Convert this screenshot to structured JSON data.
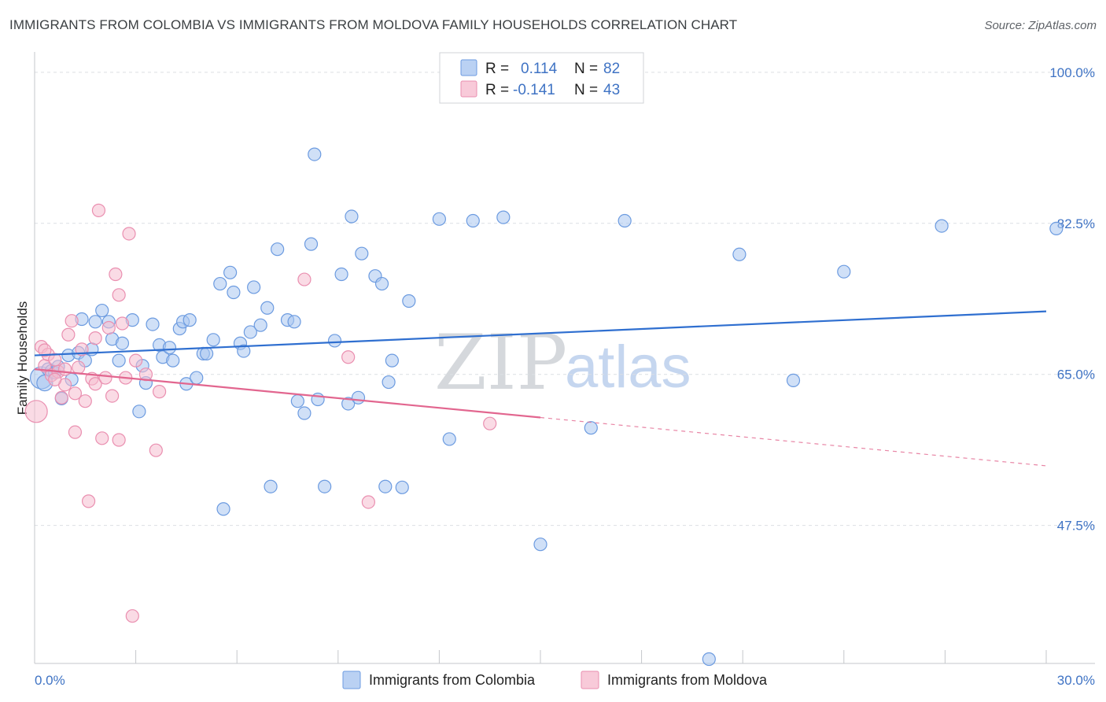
{
  "title": "IMMIGRANTS FROM COLOMBIA VS IMMIGRANTS FROM MOLDOVA FAMILY HOUSEHOLDS CORRELATION CHART",
  "source": "Source: ZipAtlas.com",
  "watermark": {
    "zip": "ZIP",
    "atlas": "atlas"
  },
  "colors": {
    "colombia_fill": "#a9c6f0",
    "colombia_stroke": "#6c9be0",
    "colombia_line": "#2f6fd0",
    "moldova_fill": "#f6bdd0",
    "moldova_stroke": "#ea8fb0",
    "moldova_line": "#e2668f",
    "grid": "#dcdfe3",
    "axis_text": "#3f73c4"
  },
  "legend": {
    "rows": [
      {
        "r_label": "R =",
        "r_value": "0.114",
        "n_label": "N =",
        "n_value": "82"
      },
      {
        "r_label": "R =",
        "r_value": "-0.141",
        "n_label": "N =",
        "n_value": "43"
      }
    ]
  },
  "chart_data": {
    "type": "scatter",
    "title": "IMMIGRANTS FROM COLOMBIA VS IMMIGRANTS FROM MOLDOVA FAMILY HOUSEHOLDS CORRELATION CHART",
    "xlabel": "",
    "ylabel": "Family Households",
    "xlim": [
      0,
      30
    ],
    "ylim": [
      31.5,
      102
    ],
    "x_tick_labels": [
      "0.0%",
      "30.0%"
    ],
    "y_ticks": [
      47.5,
      65.0,
      82.5,
      100.0
    ],
    "y_tick_labels": [
      "47.5%",
      "65.0%",
      "82.5%",
      "100.0%"
    ],
    "grid": true,
    "legend_position": "top-center",
    "series": [
      {
        "name": "Immigrants from Colombia",
        "trend": {
          "x": [
            0,
            30
          ],
          "y": [
            67.2,
            72.3
          ],
          "dashed_from": null
        },
        "points": [
          [
            0.2,
            64.6,
            14
          ],
          [
            0.4,
            65.6,
            8
          ],
          [
            0.5,
            65.4,
            8
          ],
          [
            0.6,
            65.2,
            8
          ],
          [
            0.7,
            65.9,
            8
          ],
          [
            0.8,
            62.2,
            8
          ],
          [
            1.0,
            67.2,
            8
          ],
          [
            1.1,
            64.4,
            8
          ],
          [
            1.3,
            67.5,
            8
          ],
          [
            1.5,
            66.6,
            8
          ],
          [
            1.7,
            67.9,
            8
          ],
          [
            1.4,
            71.4,
            8
          ],
          [
            1.8,
            71.1,
            8
          ],
          [
            2.0,
            72.4,
            8
          ],
          [
            2.2,
            71.1,
            8
          ],
          [
            2.3,
            69.1,
            8
          ],
          [
            2.5,
            66.6,
            8
          ],
          [
            2.6,
            68.6,
            8
          ],
          [
            2.9,
            71.3,
            8
          ],
          [
            3.1,
            60.7,
            8
          ],
          [
            3.2,
            66.0,
            8
          ],
          [
            3.3,
            64.0,
            8
          ],
          [
            3.5,
            70.8,
            8
          ],
          [
            3.7,
            68.4,
            8
          ],
          [
            3.8,
            67.0,
            8
          ],
          [
            4.0,
            68.1,
            8
          ],
          [
            4.1,
            66.6,
            8
          ],
          [
            4.3,
            70.3,
            8
          ],
          [
            4.4,
            71.1,
            8
          ],
          [
            4.6,
            71.3,
            8
          ],
          [
            4.5,
            63.9,
            8
          ],
          [
            4.8,
            64.6,
            8
          ],
          [
            5.0,
            67.4,
            8
          ],
          [
            5.1,
            67.4,
            8
          ],
          [
            5.3,
            69.0,
            8
          ],
          [
            5.5,
            75.5,
            8
          ],
          [
            5.8,
            76.8,
            8
          ],
          [
            5.6,
            49.4,
            8
          ],
          [
            5.9,
            74.5,
            8
          ],
          [
            6.1,
            68.6,
            8
          ],
          [
            6.2,
            67.7,
            8
          ],
          [
            6.4,
            69.9,
            8
          ],
          [
            6.5,
            75.1,
            8
          ],
          [
            6.7,
            70.7,
            8
          ],
          [
            6.9,
            72.7,
            8
          ],
          [
            7.2,
            79.5,
            8
          ],
          [
            7.0,
            52.0,
            8
          ],
          [
            7.5,
            71.3,
            8
          ],
          [
            7.7,
            71.1,
            8
          ],
          [
            7.8,
            61.9,
            8
          ],
          [
            8.0,
            60.5,
            8
          ],
          [
            8.2,
            80.1,
            8
          ],
          [
            8.3,
            90.5,
            8
          ],
          [
            8.4,
            62.1,
            8
          ],
          [
            8.6,
            52.0,
            8
          ],
          [
            8.9,
            68.9,
            8
          ],
          [
            9.1,
            76.6,
            8
          ],
          [
            9.3,
            61.6,
            8
          ],
          [
            9.4,
            83.3,
            8
          ],
          [
            9.6,
            62.3,
            8
          ],
          [
            9.7,
            79.0,
            8
          ],
          [
            10.1,
            76.4,
            8
          ],
          [
            10.3,
            75.5,
            8
          ],
          [
            10.4,
            52.0,
            8
          ],
          [
            10.6,
            66.6,
            8
          ],
          [
            10.5,
            64.1,
            8
          ],
          [
            10.9,
            51.9,
            8
          ],
          [
            11.1,
            73.5,
            8
          ],
          [
            12.0,
            83.0,
            8
          ],
          [
            12.3,
            57.5,
            8
          ],
          [
            13.0,
            82.8,
            8
          ],
          [
            13.9,
            83.2,
            8
          ],
          [
            15.0,
            45.3,
            8
          ],
          [
            16.5,
            58.8,
            8
          ],
          [
            17.5,
            82.8,
            8
          ],
          [
            20.0,
            32.0,
            8
          ],
          [
            20.9,
            78.9,
            8
          ],
          [
            22.5,
            64.3,
            8
          ],
          [
            24.0,
            76.9,
            8
          ],
          [
            26.9,
            82.2,
            8
          ],
          [
            30.3,
            81.9,
            8
          ],
          [
            0.3,
            64.0,
            10
          ]
        ]
      },
      {
        "name": "Immigrants from Moldova",
        "trend": {
          "x": [
            0,
            30
          ],
          "y": [
            65.6,
            54.4
          ],
          "dashed_from": 15.0
        },
        "points": [
          [
            0.05,
            60.7,
            14
          ],
          [
            0.2,
            68.2,
            8
          ],
          [
            0.3,
            66.0,
            8
          ],
          [
            0.4,
            67.3,
            8
          ],
          [
            0.5,
            64.9,
            8
          ],
          [
            0.6,
            66.7,
            8
          ],
          [
            0.7,
            65.3,
            8
          ],
          [
            0.8,
            62.3,
            8
          ],
          [
            0.9,
            63.8,
            8
          ],
          [
            1.0,
            69.6,
            8
          ],
          [
            1.1,
            71.2,
            8
          ],
          [
            1.2,
            62.8,
            8
          ],
          [
            1.2,
            58.3,
            8
          ],
          [
            1.4,
            67.9,
            8
          ],
          [
            1.5,
            61.9,
            8
          ],
          [
            1.6,
            50.3,
            8
          ],
          [
            1.7,
            64.5,
            8
          ],
          [
            1.8,
            63.9,
            8
          ],
          [
            1.8,
            69.2,
            8
          ],
          [
            1.9,
            84.0,
            8
          ],
          [
            2.0,
            57.6,
            8
          ],
          [
            2.2,
            70.4,
            8
          ],
          [
            2.1,
            64.6,
            8
          ],
          [
            2.4,
            76.6,
            8
          ],
          [
            2.5,
            74.2,
            8
          ],
          [
            2.5,
            57.4,
            8
          ],
          [
            2.6,
            70.9,
            8
          ],
          [
            2.7,
            64.6,
            8
          ],
          [
            2.8,
            81.3,
            8
          ],
          [
            2.9,
            37.0,
            8
          ],
          [
            3.0,
            66.6,
            8
          ],
          [
            3.3,
            65.0,
            8
          ],
          [
            3.6,
            56.2,
            8
          ],
          [
            3.7,
            63.0,
            8
          ],
          [
            8.0,
            76.0,
            8
          ],
          [
            9.3,
            67.0,
            8
          ],
          [
            9.9,
            50.2,
            8
          ],
          [
            13.5,
            59.3,
            8
          ],
          [
            0.6,
            64.4,
            8
          ],
          [
            0.3,
            67.8,
            8
          ],
          [
            0.9,
            65.6,
            8
          ],
          [
            1.3,
            65.8,
            8
          ],
          [
            2.3,
            62.5,
            8
          ]
        ]
      }
    ]
  },
  "bottom_legend": [
    {
      "label": "Immigrants from Colombia"
    },
    {
      "label": "Immigrants from Moldova"
    }
  ]
}
